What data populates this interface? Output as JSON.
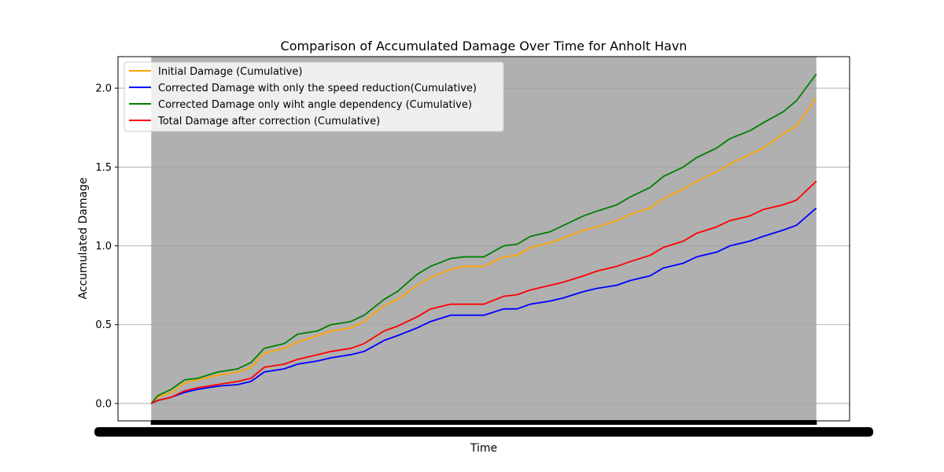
{
  "chart_data": {
    "type": "line",
    "title": "Comparison of Accumulated Damage Over Time for Anholt Havn",
    "xlabel": "Time",
    "ylabel": "Accumulated Damage",
    "ylim": [
      -0.11,
      2.2
    ],
    "yticks": [
      "0.0",
      "0.5",
      "1.0",
      "1.5",
      "2.0"
    ],
    "ytick_values": [
      0.0,
      0.5,
      1.0,
      1.5,
      2.0
    ],
    "xlim": [
      -0.05,
      1.05
    ],
    "x_tick_labels_note": "dense overlapping tick labels, unreadable",
    "grid": "y-axis",
    "legend_position": "top-left",
    "plot_background": "#b0b0b0",
    "series": [
      {
        "name": "Initial Damage (Cumulative)",
        "color": "#ffa500",
        "x": [
          0,
          0.01,
          0.03,
          0.05,
          0.07,
          0.1,
          0.13,
          0.15,
          0.17,
          0.2,
          0.22,
          0.25,
          0.27,
          0.3,
          0.32,
          0.35,
          0.37,
          0.4,
          0.42,
          0.45,
          0.47,
          0.5,
          0.53,
          0.55,
          0.57,
          0.6,
          0.62,
          0.65,
          0.67,
          0.7,
          0.72,
          0.75,
          0.77,
          0.8,
          0.82,
          0.85,
          0.87,
          0.9,
          0.92,
          0.95,
          0.97,
          1.0
        ],
        "values": [
          0,
          0.04,
          0.07,
          0.13,
          0.15,
          0.18,
          0.2,
          0.23,
          0.32,
          0.35,
          0.39,
          0.43,
          0.46,
          0.48,
          0.52,
          0.62,
          0.66,
          0.75,
          0.8,
          0.85,
          0.87,
          0.87,
          0.93,
          0.94,
          0.99,
          1.02,
          1.05,
          1.1,
          1.12,
          1.16,
          1.2,
          1.24,
          1.3,
          1.36,
          1.41,
          1.47,
          1.52,
          1.58,
          1.62,
          1.71,
          1.76,
          1.94
        ]
      },
      {
        "name": "Corrected Damage with only the speed reduction(Cumulative)",
        "color": "#0000ff",
        "x": [
          0,
          0.01,
          0.03,
          0.05,
          0.07,
          0.1,
          0.13,
          0.15,
          0.17,
          0.2,
          0.22,
          0.25,
          0.27,
          0.3,
          0.32,
          0.35,
          0.37,
          0.4,
          0.42,
          0.45,
          0.47,
          0.5,
          0.53,
          0.55,
          0.57,
          0.6,
          0.62,
          0.65,
          0.67,
          0.7,
          0.72,
          0.75,
          0.77,
          0.8,
          0.82,
          0.85,
          0.87,
          0.9,
          0.92,
          0.95,
          0.97,
          1.0
        ],
        "values": [
          0,
          0.02,
          0.04,
          0.07,
          0.09,
          0.11,
          0.12,
          0.14,
          0.2,
          0.22,
          0.25,
          0.27,
          0.29,
          0.31,
          0.33,
          0.4,
          0.43,
          0.48,
          0.52,
          0.56,
          0.56,
          0.56,
          0.6,
          0.6,
          0.63,
          0.65,
          0.67,
          0.71,
          0.73,
          0.75,
          0.78,
          0.81,
          0.86,
          0.89,
          0.93,
          0.96,
          1.0,
          1.03,
          1.06,
          1.1,
          1.13,
          1.24
        ]
      },
      {
        "name": "Corrected Damage only wiht angle dependency (Cumulative)",
        "color": "#008000",
        "x": [
          0,
          0.01,
          0.03,
          0.05,
          0.07,
          0.1,
          0.13,
          0.15,
          0.17,
          0.2,
          0.22,
          0.25,
          0.27,
          0.3,
          0.32,
          0.35,
          0.37,
          0.4,
          0.42,
          0.45,
          0.47,
          0.5,
          0.53,
          0.55,
          0.57,
          0.6,
          0.62,
          0.65,
          0.67,
          0.7,
          0.72,
          0.75,
          0.77,
          0.8,
          0.82,
          0.85,
          0.87,
          0.9,
          0.92,
          0.95,
          0.97,
          1.0
        ],
        "values": [
          0,
          0.05,
          0.09,
          0.15,
          0.16,
          0.2,
          0.22,
          0.26,
          0.35,
          0.38,
          0.44,
          0.46,
          0.5,
          0.52,
          0.56,
          0.66,
          0.71,
          0.82,
          0.87,
          0.92,
          0.93,
          0.93,
          1.0,
          1.01,
          1.06,
          1.09,
          1.13,
          1.19,
          1.22,
          1.26,
          1.31,
          1.37,
          1.44,
          1.5,
          1.56,
          1.62,
          1.68,
          1.73,
          1.78,
          1.85,
          1.92,
          2.09
        ]
      },
      {
        "name": "Total Damage after correction (Cumulative)",
        "color": "#ff0000",
        "x": [
          0,
          0.01,
          0.03,
          0.05,
          0.07,
          0.1,
          0.13,
          0.15,
          0.17,
          0.2,
          0.22,
          0.25,
          0.27,
          0.3,
          0.32,
          0.35,
          0.37,
          0.4,
          0.42,
          0.45,
          0.47,
          0.5,
          0.53,
          0.55,
          0.57,
          0.6,
          0.62,
          0.65,
          0.67,
          0.7,
          0.72,
          0.75,
          0.77,
          0.8,
          0.82,
          0.85,
          0.87,
          0.9,
          0.92,
          0.95,
          0.97,
          1.0
        ],
        "values": [
          0,
          0.02,
          0.04,
          0.08,
          0.1,
          0.12,
          0.14,
          0.16,
          0.23,
          0.25,
          0.28,
          0.31,
          0.33,
          0.35,
          0.38,
          0.46,
          0.49,
          0.55,
          0.6,
          0.63,
          0.63,
          0.63,
          0.68,
          0.69,
          0.72,
          0.75,
          0.77,
          0.81,
          0.84,
          0.87,
          0.9,
          0.94,
          0.99,
          1.03,
          1.08,
          1.12,
          1.16,
          1.19,
          1.23,
          1.26,
          1.29,
          1.41
        ]
      }
    ]
  }
}
